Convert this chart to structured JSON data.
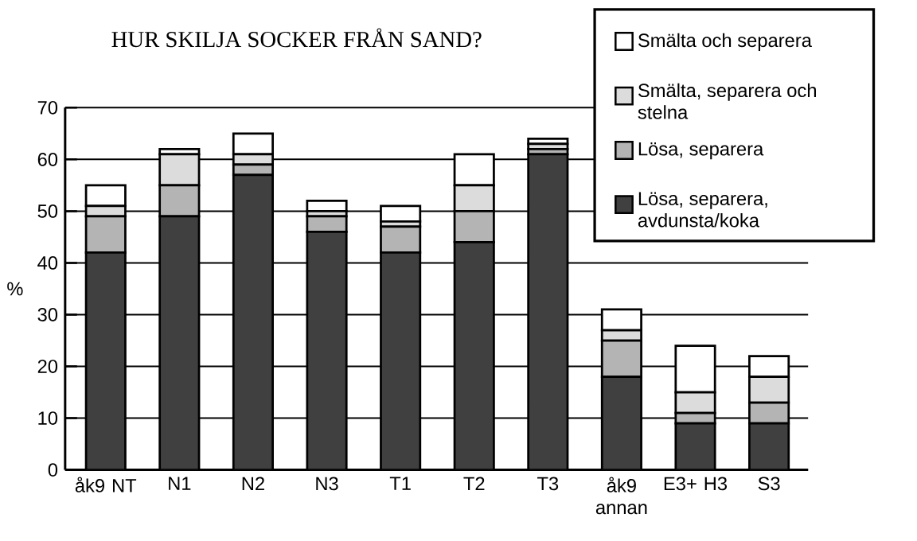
{
  "chart_data": {
    "type": "bar",
    "title": "HUR SKILJA SOCKER FRÅN SAND?",
    "ylabel": "%",
    "categories": [
      "åk9 NT",
      "N1",
      "N2",
      "N3",
      "T1",
      "T2",
      "T3",
      "åk9 annan",
      "E3+ H3",
      "S3"
    ],
    "stacked": true,
    "series": [
      {
        "name": "Lösa, separera, avdunsta/koka",
        "color": "#404040",
        "values": [
          42,
          49,
          57,
          46,
          42,
          44,
          61,
          18,
          9,
          9
        ]
      },
      {
        "name": "Lösa, separera",
        "color": "#b4b4b4",
        "values": [
          7,
          6,
          2,
          3,
          5,
          6,
          1,
          7,
          2,
          4
        ]
      },
      {
        "name": "Smälta, separera  och stelna",
        "color": "#dcdcdc",
        "values": [
          2,
          6,
          2,
          1,
          1,
          5,
          1,
          2,
          4,
          5
        ]
      },
      {
        "name": "Smälta och separera",
        "color": "#ffffff",
        "values": [
          4,
          1,
          4,
          2,
          3,
          6,
          1,
          4,
          9,
          4
        ]
      }
    ],
    "ylim": [
      0,
      70
    ],
    "yticks": [
      0,
      10,
      20,
      30,
      40,
      50,
      60,
      70
    ],
    "grid": "y",
    "legend": "top right"
  }
}
